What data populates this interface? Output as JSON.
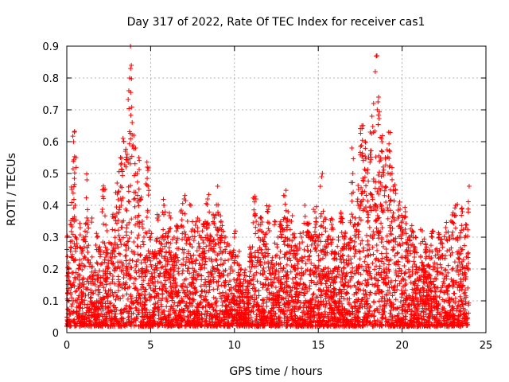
{
  "chart_data": {
    "type": "scatter",
    "title": "Day 317 of 2022, Rate Of TEC Index for receiver cas1",
    "xlabel": "GPS time / hours",
    "ylabel": "ROTI / TECUs",
    "xlim": [
      0,
      25
    ],
    "ylim": [
      0,
      0.9
    ],
    "x_ticks": [
      "0",
      "5",
      "10",
      "15",
      "20",
      "25"
    ],
    "y_ticks": [
      "0",
      "0.1",
      "0.2",
      "0.3",
      "0.4",
      "0.5",
      "0.6",
      "0.7",
      "0.8",
      "0.9"
    ],
    "grid": true,
    "marker": "plus",
    "color": "#ff0000",
    "series": [
      {
        "x": [
          0.0,
          0.1,
          0.2,
          0.3,
          0.4,
          0.45,
          0.5,
          0.55,
          0.6,
          0.7,
          0.8,
          0.9,
          1.0,
          1.2,
          1.4,
          1.5,
          1.6,
          1.8,
          2.0,
          2.2,
          2.4,
          2.6,
          2.8,
          3.0,
          3.2,
          3.4,
          3.5,
          3.6,
          3.7,
          3.75,
          3.8,
          3.85,
          3.9,
          4.0,
          4.1,
          4.2,
          4.3,
          4.4,
          4.5,
          4.6,
          4.8,
          5.0,
          5.2,
          5.4,
          5.6,
          5.8,
          6.0,
          6.2,
          6.4,
          6.6,
          6.8,
          7.0,
          7.2,
          7.4,
          7.6,
          7.8,
          8.0,
          8.2,
          8.4,
          8.6,
          8.8,
          9.0,
          9.2,
          9.4,
          9.6,
          9.8,
          10.0,
          10.2,
          10.4,
          10.6,
          10.8,
          11.0,
          11.2,
          11.4,
          11.6,
          11.8,
          12.0,
          12.2,
          12.4,
          12.6,
          12.8,
          13.0,
          13.2,
          13.4,
          13.6,
          13.8,
          14.0,
          14.2,
          14.4,
          14.6,
          14.8,
          15.0,
          15.2,
          15.4,
          15.6,
          15.8,
          16.0,
          16.2,
          16.4,
          16.6,
          16.8,
          17.0,
          17.2,
          17.4,
          17.6,
          17.8,
          18.0,
          18.1,
          18.2,
          18.3,
          18.4,
          18.5,
          18.6,
          18.8,
          19.0,
          19.2,
          19.4,
          19.6,
          19.8,
          20.0,
          20.2,
          20.4,
          20.6,
          20.8,
          21.0,
          21.2,
          21.4,
          21.6,
          21.8,
          22.0,
          22.2,
          22.4,
          22.6,
          22.8,
          23.0,
          23.2,
          23.4,
          23.6,
          23.8,
          24.0
        ],
        "y": [
          0.3,
          0.22,
          0.34,
          0.45,
          0.6,
          0.63,
          0.4,
          0.55,
          0.28,
          0.2,
          0.33,
          0.25,
          0.3,
          0.48,
          0.22,
          0.36,
          0.18,
          0.3,
          0.26,
          0.45,
          0.32,
          0.28,
          0.36,
          0.47,
          0.55,
          0.6,
          0.57,
          0.56,
          0.76,
          0.8,
          0.9,
          0.84,
          0.66,
          0.62,
          0.58,
          0.5,
          0.55,
          0.42,
          0.35,
          0.3,
          0.52,
          0.3,
          0.24,
          0.36,
          0.28,
          0.4,
          0.3,
          0.36,
          0.3,
          0.33,
          0.38,
          0.42,
          0.35,
          0.4,
          0.32,
          0.36,
          0.3,
          0.34,
          0.42,
          0.3,
          0.36,
          0.46,
          0.35,
          0.3,
          0.28,
          0.25,
          0.3,
          0.24,
          0.2,
          0.18,
          0.16,
          0.25,
          0.42,
          0.32,
          0.36,
          0.3,
          0.38,
          0.22,
          0.35,
          0.3,
          0.33,
          0.43,
          0.38,
          0.35,
          0.3,
          0.26,
          0.3,
          0.4,
          0.34,
          0.3,
          0.38,
          0.3,
          0.49,
          0.36,
          0.3,
          0.34,
          0.25,
          0.3,
          0.36,
          0.3,
          0.28,
          0.58,
          0.36,
          0.45,
          0.65,
          0.6,
          0.55,
          0.63,
          0.68,
          0.72,
          0.82,
          0.87,
          0.74,
          0.6,
          0.55,
          0.63,
          0.5,
          0.45,
          0.4,
          0.35,
          0.38,
          0.3,
          0.32,
          0.3,
          0.2,
          0.32,
          0.28,
          0.24,
          0.3,
          0.26,
          0.3,
          0.28,
          0.33,
          0.3,
          0.37,
          0.4,
          0.3,
          0.38,
          0.34,
          0.46
        ]
      }
    ]
  }
}
